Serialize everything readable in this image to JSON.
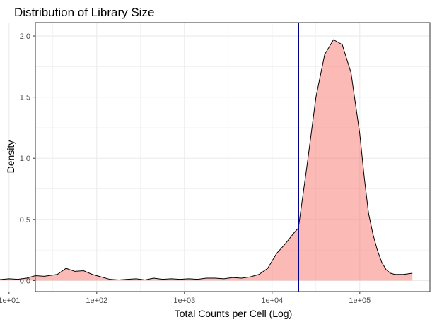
{
  "chart_data": {
    "type": "area",
    "title": "Distribution of Library Size",
    "xlabel": "Total Counts per Cell (Log)",
    "ylabel": "Density",
    "x_scale": "log10",
    "xlim": [
      1.3,
      5.8
    ],
    "ylim": [
      -0.09,
      2.11
    ],
    "x_ticks": [
      1,
      2,
      3,
      4,
      5
    ],
    "x_tick_labels": [
      "1e+01",
      "1e+02",
      "1e+03",
      "1e+04",
      "1e+05"
    ],
    "y_ticks": [
      0.0,
      0.5,
      1.0,
      1.5,
      2.0
    ],
    "y_tick_labels": [
      "0.0",
      "0.5",
      "1.0",
      "1.5",
      "2.0"
    ],
    "grid": true,
    "legend": "none",
    "series": [
      {
        "x_log10": [
          0.34,
          0.5,
          0.7,
          0.85,
          1.0,
          1.1,
          1.2,
          1.3,
          1.4,
          1.55,
          1.65,
          1.75,
          1.85,
          1.95,
          2.05,
          2.15,
          2.25,
          2.35,
          2.45,
          2.55,
          2.65,
          2.75,
          2.85,
          2.95,
          3.05,
          3.15,
          3.25,
          3.35,
          3.45,
          3.55,
          3.65,
          3.75,
          3.85,
          3.95,
          4.05,
          4.15,
          4.25,
          4.3,
          4.4,
          4.5,
          4.6,
          4.7,
          4.8,
          4.9,
          5.0,
          5.05,
          5.1,
          5.15,
          5.2,
          5.25,
          5.3,
          5.35,
          5.4,
          5.5,
          5.6
        ],
        "density": [
          0.01,
          0.005,
          0.01,
          0.005,
          0.015,
          0.01,
          0.02,
          0.04,
          0.035,
          0.05,
          0.1,
          0.075,
          0.08,
          0.05,
          0.03,
          0.01,
          0.005,
          0.01,
          0.015,
          0.005,
          0.02,
          0.01,
          0.015,
          0.01,
          0.015,
          0.01,
          0.02,
          0.02,
          0.015,
          0.025,
          0.02,
          0.03,
          0.05,
          0.1,
          0.22,
          0.3,
          0.39,
          0.43,
          0.95,
          1.5,
          1.85,
          1.97,
          1.93,
          1.7,
          1.2,
          0.85,
          0.55,
          0.38,
          0.25,
          0.15,
          0.09,
          0.06,
          0.05,
          0.05,
          0.06
        ]
      }
    ],
    "vline": {
      "x_log10": 4.3
    },
    "colors": {
      "fill": "#f8766d",
      "outline": "#000000",
      "vline": "#00008b",
      "grid": "#ebebeb",
      "border": "#333333"
    }
  }
}
